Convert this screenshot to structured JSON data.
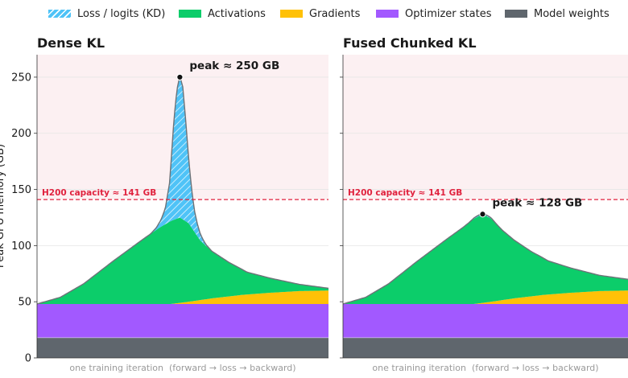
{
  "legend": [
    {
      "label": "Loss / logits (KD)",
      "color": "#4fc3f7",
      "icon": "hatched-swatch"
    },
    {
      "label": "Activations",
      "color": "#0ccd6a",
      "icon": "swatch"
    },
    {
      "label": "Gradients",
      "color": "#ffc107",
      "icon": "swatch"
    },
    {
      "label": "Optimizer states",
      "color": "#a259ff",
      "icon": "swatch"
    },
    {
      "label": "Model weights",
      "color": "#5f666d",
      "icon": "swatch"
    }
  ],
  "chart_data": [
    {
      "type": "area",
      "title": "Dense KL",
      "ylabel": "Peak GPU memory (GB)",
      "xlabel": "one training iteration  (forward → loss → backward)",
      "ylim": [
        0,
        270
      ],
      "xlim": [
        0,
        100
      ],
      "yticks": [
        0,
        50,
        100,
        150,
        200,
        250
      ],
      "grid": true,
      "capacity": {
        "value": 141,
        "label": "H200 capacity ≈ 141 GB",
        "color": "#e0223e"
      },
      "peak": {
        "x": 49,
        "y": 250,
        "label": "peak ≈ 250 GB"
      },
      "stacked": true,
      "series": [
        {
          "name": "Model weights",
          "color": "#5f666d",
          "points": [
            [
              0,
              18
            ],
            [
              100,
              18
            ]
          ]
        },
        {
          "name": "Optimizer states",
          "color": "#a259ff",
          "points": [
            [
              0,
              30
            ],
            [
              100,
              30
            ]
          ]
        },
        {
          "name": "Gradients",
          "color": "#ffc107",
          "points": [
            [
              0,
              0
            ],
            [
              46,
              0
            ],
            [
              52,
              2
            ],
            [
              60,
              5
            ],
            [
              70,
              8
            ],
            [
              80,
              10
            ],
            [
              90,
              11.5
            ],
            [
              100,
              12
            ]
          ]
        },
        {
          "name": "Activations",
          "color": "#0ccd6a",
          "points": [
            [
              0,
              0
            ],
            [
              8,
              6
            ],
            [
              16,
              18
            ],
            [
              26,
              38
            ],
            [
              36,
              57
            ],
            [
              42,
              68
            ],
            [
              46,
              74
            ],
            [
              49,
              76
            ],
            [
              52,
              70
            ],
            [
              56,
              53
            ],
            [
              60,
              42
            ],
            [
              66,
              30
            ],
            [
              72,
              20
            ],
            [
              80,
              13
            ],
            [
              90,
              6
            ],
            [
              100,
              2
            ]
          ]
        },
        {
          "name": "Loss / logits (KD)",
          "color": "#4fc3f7",
          "hatched": true,
          "points": [
            [
              0,
              0
            ],
            [
              39,
              0
            ],
            [
              41,
              2
            ],
            [
              42.5,
              6
            ],
            [
              44,
              14
            ],
            [
              45.5,
              35
            ],
            [
              47,
              90
            ],
            [
              48,
              115
            ],
            [
              49,
              126
            ],
            [
              50,
              118
            ],
            [
              51,
              90
            ],
            [
              52,
              58
            ],
            [
              53,
              35
            ],
            [
              54,
              19
            ],
            [
              55,
              11
            ],
            [
              56,
              6
            ],
            [
              57,
              3
            ],
            [
              58,
              1
            ],
            [
              60,
              0
            ],
            [
              100,
              0
            ]
          ]
        }
      ]
    },
    {
      "type": "area",
      "title": "Fused Chunked KL",
      "ylabel": "Peak GPU memory (GB)",
      "xlabel": "one training iteration  (forward → loss → backward)",
      "ylim": [
        0,
        270
      ],
      "xlim": [
        0,
        100
      ],
      "yticks": [
        0,
        50,
        100,
        150,
        200,
        250
      ],
      "grid": true,
      "capacity": {
        "value": 141,
        "label": "H200 capacity ≈ 141 GB",
        "color": "#e0223e"
      },
      "peak": {
        "x": 49,
        "y": 128,
        "label": "peak ≈ 128 GB"
      },
      "stacked": true,
      "series": [
        {
          "name": "Model weights",
          "color": "#5f666d",
          "points": [
            [
              0,
              18
            ],
            [
              100,
              18
            ]
          ]
        },
        {
          "name": "Optimizer states",
          "color": "#a259ff",
          "points": [
            [
              0,
              30
            ],
            [
              100,
              30
            ]
          ]
        },
        {
          "name": "Gradients",
          "color": "#ffc107",
          "points": [
            [
              0,
              0
            ],
            [
              46,
              0
            ],
            [
              52,
              2
            ],
            [
              60,
              5
            ],
            [
              70,
              8
            ],
            [
              80,
              10
            ],
            [
              90,
              11.5
            ],
            [
              100,
              12
            ]
          ]
        },
        {
          "name": "Activations",
          "color": "#0ccd6a",
          "points": [
            [
              0,
              0
            ],
            [
              8,
              6
            ],
            [
              16,
              18
            ],
            [
              26,
              38
            ],
            [
              36,
              57
            ],
            [
              42,
              68
            ],
            [
              46,
              76
            ],
            [
              49,
              79
            ],
            [
              52,
              74
            ],
            [
              56,
              62
            ],
            [
              60,
              52
            ],
            [
              66,
              40
            ],
            [
              72,
              30
            ],
            [
              80,
              22
            ],
            [
              90,
              14
            ],
            [
              100,
              10
            ]
          ]
        },
        {
          "name": "Loss / logits (KD)",
          "color": "#4fc3f7",
          "hatched": true,
          "points": [
            [
              0,
              0
            ],
            [
              44,
              0
            ],
            [
              47,
              1
            ],
            [
              49,
              1
            ],
            [
              51,
              1
            ],
            [
              54,
              0
            ],
            [
              100,
              0
            ]
          ]
        }
      ]
    }
  ]
}
